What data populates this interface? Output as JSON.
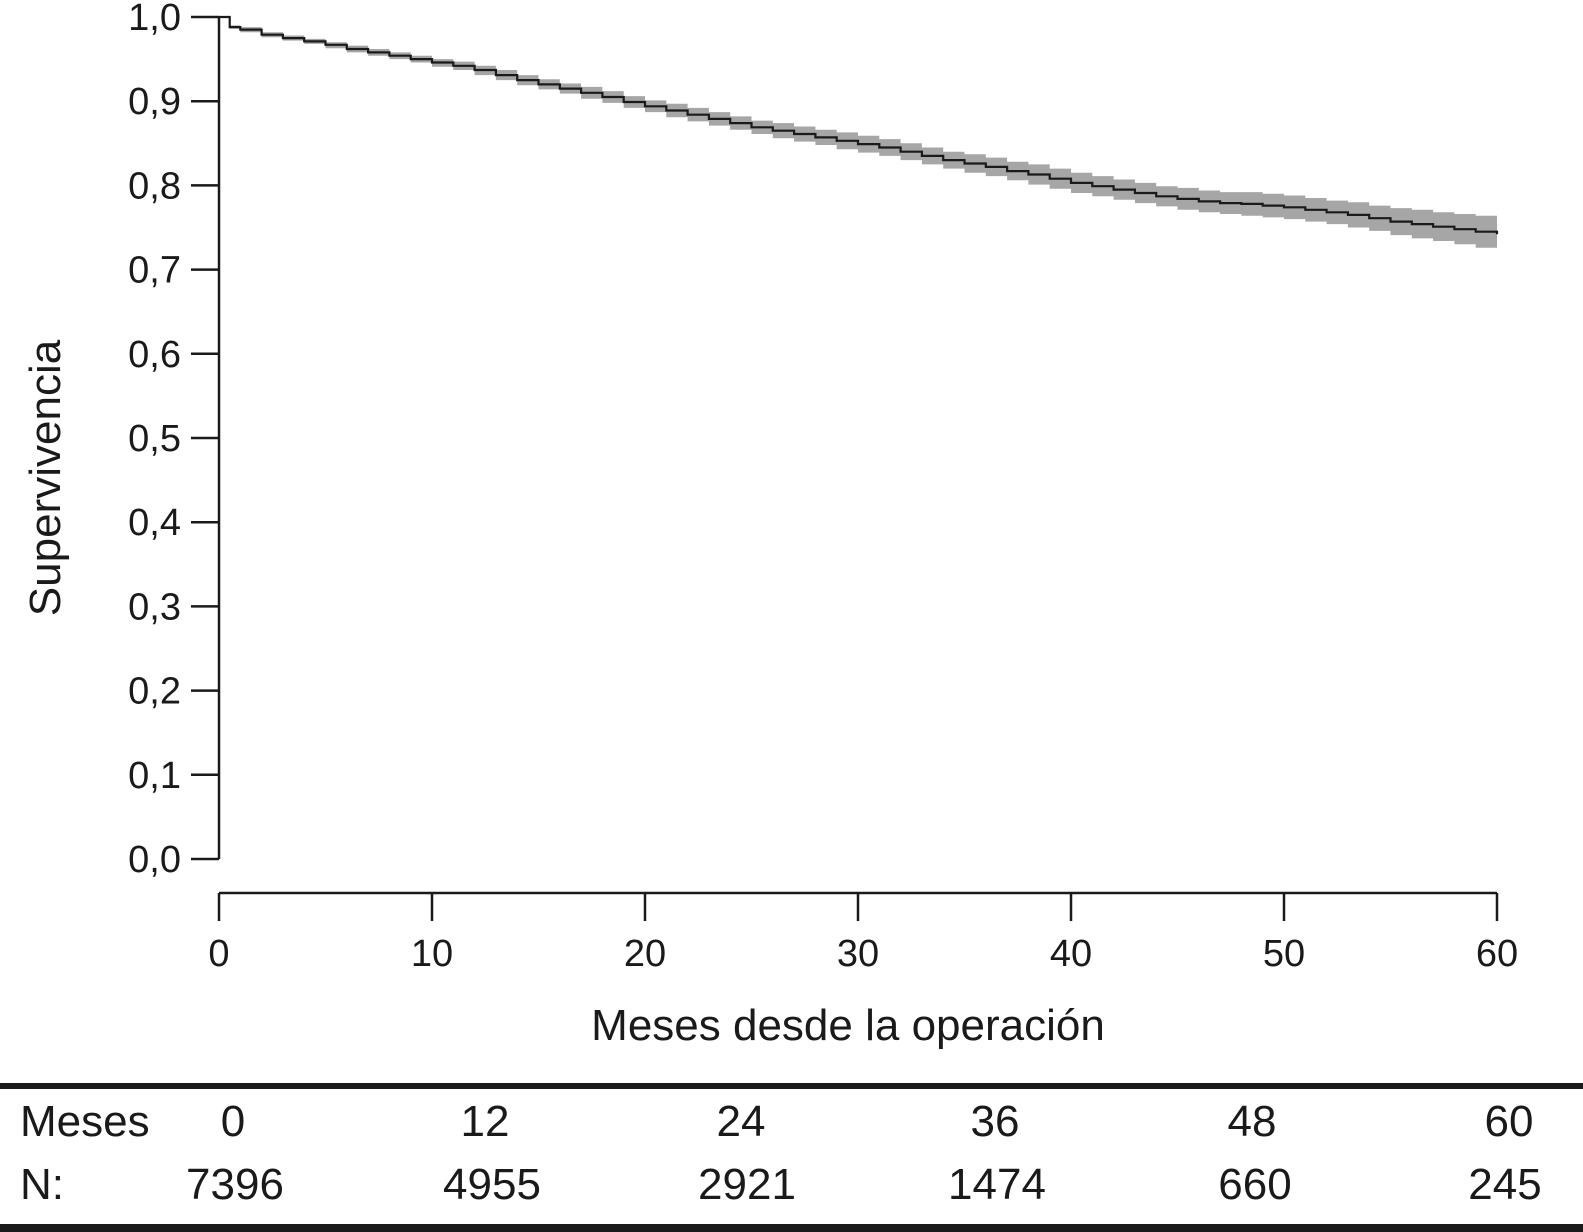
{
  "chart_data": {
    "type": "line",
    "subtype": "kaplan-meier",
    "title": "",
    "xlabel": "Meses desde la operación",
    "ylabel": "Supervivencia",
    "xlim": [
      0,
      60
    ],
    "ylim": [
      0.0,
      1.0
    ],
    "x_ticks": [
      0,
      10,
      20,
      30,
      40,
      50,
      60
    ],
    "x_tick_labels": [
      "0",
      "10",
      "20",
      "30",
      "40",
      "50",
      "60"
    ],
    "y_ticks": [
      0.0,
      0.1,
      0.2,
      0.3,
      0.4,
      0.5,
      0.6,
      0.7,
      0.8,
      0.9,
      1.0
    ],
    "y_tick_labels": [
      "0,0",
      "0,1",
      "0,2",
      "0,3",
      "0,4",
      "0,5",
      "0,6",
      "0,7",
      "0,8",
      "0,9",
      "1,0"
    ],
    "grid": false,
    "legend": "none",
    "colors": {
      "line": "#1a1a1a",
      "band": "#a6a6a6"
    },
    "series": [
      {
        "x": [
          0,
          0.5,
          1,
          2,
          3,
          4,
          5,
          6,
          7,
          8,
          9,
          10,
          11,
          12,
          13,
          14,
          15,
          16,
          17,
          18,
          19,
          20,
          21,
          22,
          23,
          24,
          25,
          26,
          27,
          28,
          29,
          30,
          31,
          32,
          33,
          34,
          35,
          36,
          37,
          38,
          39,
          40,
          41,
          42,
          43,
          44,
          45,
          46,
          47,
          48,
          49,
          50,
          51,
          52,
          53,
          54,
          55,
          56,
          57,
          58,
          59,
          60
        ],
        "y": [
          1.0,
          0.988,
          0.985,
          0.979,
          0.975,
          0.971,
          0.967,
          0.962,
          0.958,
          0.954,
          0.95,
          0.946,
          0.942,
          0.937,
          0.931,
          0.925,
          0.92,
          0.915,
          0.91,
          0.905,
          0.899,
          0.894,
          0.889,
          0.884,
          0.879,
          0.874,
          0.869,
          0.865,
          0.861,
          0.857,
          0.853,
          0.849,
          0.845,
          0.84,
          0.835,
          0.83,
          0.826,
          0.822,
          0.817,
          0.813,
          0.808,
          0.803,
          0.799,
          0.795,
          0.791,
          0.787,
          0.784,
          0.781,
          0.779,
          0.778,
          0.776,
          0.774,
          0.771,
          0.768,
          0.765,
          0.761,
          0.757,
          0.754,
          0.751,
          0.748,
          0.745,
          0.742
        ],
        "ci_lower": [
          1.0,
          0.986,
          0.982,
          0.976,
          0.972,
          0.968,
          0.963,
          0.958,
          0.954,
          0.95,
          0.946,
          0.941,
          0.937,
          0.931,
          0.925,
          0.919,
          0.914,
          0.909,
          0.903,
          0.898,
          0.892,
          0.887,
          0.881,
          0.876,
          0.871,
          0.866,
          0.861,
          0.856,
          0.852,
          0.848,
          0.843,
          0.839,
          0.835,
          0.83,
          0.825,
          0.82,
          0.815,
          0.811,
          0.806,
          0.801,
          0.796,
          0.791,
          0.787,
          0.783,
          0.779,
          0.775,
          0.771,
          0.768,
          0.766,
          0.764,
          0.762,
          0.76,
          0.757,
          0.754,
          0.75,
          0.746,
          0.741,
          0.737,
          0.734,
          0.73,
          0.726,
          0.722
        ],
        "ci_upper": [
          1.0,
          0.99,
          0.988,
          0.982,
          0.978,
          0.974,
          0.97,
          0.966,
          0.962,
          0.958,
          0.954,
          0.95,
          0.947,
          0.942,
          0.937,
          0.931,
          0.926,
          0.921,
          0.917,
          0.912,
          0.906,
          0.901,
          0.897,
          0.892,
          0.887,
          0.882,
          0.877,
          0.874,
          0.87,
          0.866,
          0.863,
          0.859,
          0.855,
          0.85,
          0.845,
          0.84,
          0.837,
          0.833,
          0.828,
          0.825,
          0.82,
          0.815,
          0.811,
          0.807,
          0.803,
          0.799,
          0.797,
          0.794,
          0.792,
          0.792,
          0.79,
          0.788,
          0.785,
          0.782,
          0.78,
          0.776,
          0.773,
          0.771,
          0.768,
          0.766,
          0.764,
          0.762
        ]
      }
    ],
    "risk_table": {
      "header_label": "Meses",
      "row_label": "N:",
      "months": [
        "0",
        "12",
        "24",
        "36",
        "48",
        "60"
      ],
      "n": [
        "7396",
        "4955",
        "2921",
        "1474",
        "660",
        "245"
      ]
    }
  }
}
